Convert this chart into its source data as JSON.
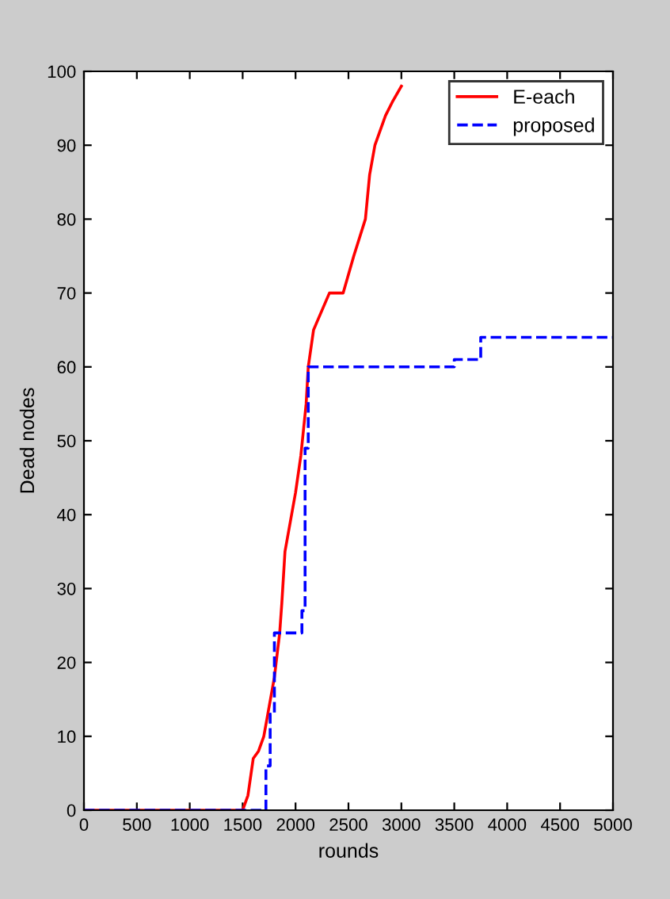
{
  "chart_data": {
    "type": "line",
    "xlabel": "rounds",
    "ylabel": "Dead nodes",
    "xlim": [
      0,
      5000
    ],
    "xticks": [
      0,
      500,
      1000,
      1500,
      2000,
      2500,
      3000,
      3500,
      4000,
      4500,
      5000
    ],
    "ylim": [
      0,
      100
    ],
    "yticks": [
      0,
      10,
      20,
      30,
      40,
      50,
      60,
      70,
      80,
      90,
      100
    ],
    "grid": false,
    "legend": "top right",
    "series": [
      {
        "name": "E-each",
        "color": "#ff0000",
        "line_style": "solid",
        "x": [
          0,
          1500,
          1550,
          1600,
          1650,
          1700,
          1750,
          1800,
          1850,
          1870,
          1900,
          1950,
          2000,
          2050,
          2100,
          2120,
          2170,
          2200,
          2320,
          2450,
          2550,
          2660,
          2700,
          2750,
          2850,
          2920,
          3000
        ],
        "values": [
          0,
          0,
          2,
          7,
          8,
          10,
          14,
          18,
          24,
          28,
          35,
          39,
          43,
          48,
          55,
          60,
          65,
          66,
          70,
          70,
          75,
          80,
          86,
          90,
          94,
          96,
          98
        ]
      },
      {
        "name": "proposed",
        "color": "#0000ff",
        "type": "step",
        "line_style": "dashed",
        "x": [
          0,
          1700,
          1720,
          1760,
          1800,
          2020,
          2060,
          2090,
          2120,
          3500,
          3750,
          5000
        ],
        "values": [
          0,
          0,
          6,
          13,
          24,
          24,
          27,
          49,
          60,
          61,
          64,
          64
        ]
      }
    ]
  }
}
